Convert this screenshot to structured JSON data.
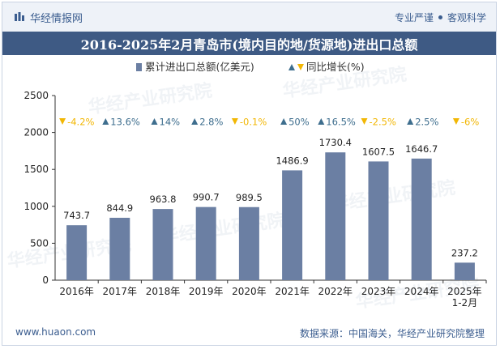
{
  "header": {
    "logo_text": "华经情报网",
    "tags": [
      "专业严谨",
      "客观科学"
    ]
  },
  "title": "2016-2025年2月青岛市(境内目的地/货源地)进出口总额",
  "footer": {
    "website": "www.huaon.com",
    "source": "数据来源：中国海关，华经产业研究院整理"
  },
  "colors": {
    "bar": "#6b7fa3",
    "up": "#3e6e8e",
    "down": "#f2b705",
    "header_band": "#3e5a84"
  },
  "chart_data": {
    "type": "bar",
    "categories": [
      "2016年",
      "2017年",
      "2018年",
      "2019年",
      "2020年",
      "2021年",
      "2022年",
      "2023年",
      "2024年",
      "2025年\n1-2月"
    ],
    "series": [
      {
        "name": "累计进出口总额(亿美元)",
        "values": [
          743.7,
          844.9,
          963.8,
          990.7,
          989.5,
          1486.9,
          1730.4,
          1607.5,
          1646.7,
          237.2
        ]
      },
      {
        "name": "同比增长(%)",
        "values": [
          -4.2,
          13.6,
          14,
          2.8,
          -0.1,
          50,
          16.5,
          -2.5,
          2.5,
          -6
        ],
        "labels": [
          "-4.2%",
          "13.6%",
          "14%",
          "2.8%",
          "-0.1%",
          "50%",
          "16.5%",
          "-2.5%",
          "2.5%",
          "-6%"
        ]
      }
    ],
    "value_labels": [
      "743.7",
      "844.9",
      "963.8",
      "990.7",
      "989.5",
      "1486.9",
      "1730.4",
      "1607.5",
      "1646.7",
      "237.2"
    ],
    "y_ticks": [
      "0",
      "500",
      "1000",
      "1500",
      "2000",
      "2500"
    ],
    "ylim": [
      0,
      2500
    ],
    "legend_position": "top-center",
    "grid": false
  },
  "watermark": "华经产业研究院"
}
